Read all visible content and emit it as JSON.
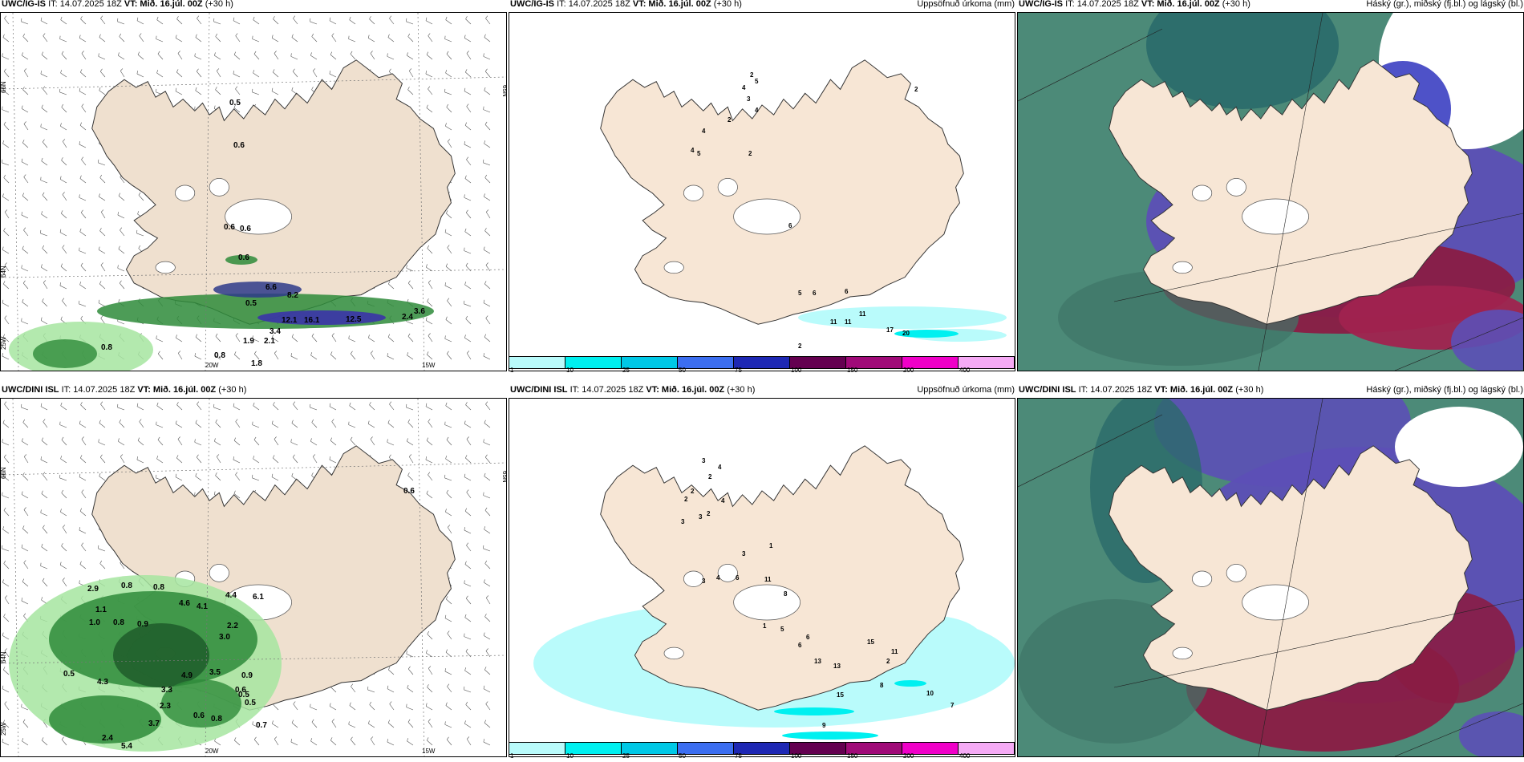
{
  "panels": [
    {
      "model": "UWC/IG-IS",
      "it_label": "IT: 14.07.2025 18Z",
      "vt_label": "VT: Mið. 16.júl. 00Z",
      "lead": "(+30 h)",
      "title_right": "",
      "values": [
        {
          "v": "0.5"
        },
        {
          "v": "0.6"
        },
        {
          "v": "0.6"
        },
        {
          "v": "0.6"
        },
        {
          "v": "0.6"
        },
        {
          "v": "6.6"
        },
        {
          "v": "8.2"
        },
        {
          "v": "0.5"
        },
        {
          "v": "12.1"
        },
        {
          "v": "16.1"
        },
        {
          "v": "12.5"
        },
        {
          "v": "2.4"
        },
        {
          "v": "3.4"
        },
        {
          "v": "1.9"
        },
        {
          "v": "2.1"
        },
        {
          "v": "0.8"
        },
        {
          "v": "0.8"
        },
        {
          "v": "1.8"
        },
        {
          "v": "3.6"
        }
      ],
      "axis": {
        "lat1": "66N",
        "lat2": "64N",
        "lat3": "65N",
        "lon1": "20W",
        "lon2": "15W",
        "lon3": "25W"
      }
    },
    {
      "model": "UWC/IG-IS",
      "it_label": "IT: 14.07.2025 18Z",
      "vt_label": "VT: Mið. 16.júl. 00Z",
      "lead": "(+30 h)",
      "title_right": "Uppsöfnuð úrkoma (mm)",
      "values": [
        {
          "v": "2"
        },
        {
          "v": "5"
        },
        {
          "v": "4"
        },
        {
          "v": "3"
        },
        {
          "v": "4"
        },
        {
          "v": "2"
        },
        {
          "v": "4"
        },
        {
          "v": "4"
        },
        {
          "v": "5"
        },
        {
          "v": "2"
        },
        {
          "v": "2"
        },
        {
          "v": "6"
        },
        {
          "v": "5"
        },
        {
          "v": "6"
        },
        {
          "v": "6"
        },
        {
          "v": "11"
        },
        {
          "v": "11"
        },
        {
          "v": "11"
        },
        {
          "v": "17"
        },
        {
          "v": "20"
        },
        {
          "v": "2"
        }
      ]
    },
    {
      "model": "UWC/IG-IS",
      "it_label": "IT: 14.07.2025 18Z",
      "vt_label": "VT: Mið. 16.júl. 00Z",
      "lead": "(+30 h)",
      "title_right": "Háský (gr.), miðský (fj.bl.) og lágský (bl.)"
    },
    {
      "model": "UWC/DINI ISL",
      "it_label": "IT: 14.07.2025 18Z",
      "vt_label": "VT: Mið. 16.júl. 00Z",
      "lead": "(+30 h)",
      "title_right": "",
      "values": [
        {
          "v": "0.6"
        },
        {
          "v": "2.9"
        },
        {
          "v": "0.8"
        },
        {
          "v": "0.8"
        },
        {
          "v": "1.1"
        },
        {
          "v": "1.0"
        },
        {
          "v": "0.8"
        },
        {
          "v": "0.9"
        },
        {
          "v": "4.6"
        },
        {
          "v": "4.1"
        },
        {
          "v": "4.4"
        },
        {
          "v": "6.1"
        },
        {
          "v": "2.2"
        },
        {
          "v": "3.0"
        },
        {
          "v": "0.5"
        },
        {
          "v": "4.3"
        },
        {
          "v": "4.9"
        },
        {
          "v": "3.5"
        },
        {
          "v": "3.3"
        },
        {
          "v": "2.3"
        },
        {
          "v": "0.6"
        },
        {
          "v": "0.5"
        },
        {
          "v": "3.7"
        },
        {
          "v": "0.5"
        },
        {
          "v": "0.7"
        },
        {
          "v": "2.4"
        },
        {
          "v": "5.4"
        },
        {
          "v": "0.9"
        },
        {
          "v": "0.6"
        },
        {
          "v": "0.8"
        }
      ],
      "axis": {
        "lat1": "66N",
        "lat2": "64N",
        "lat3": "65N",
        "lon1": "20W",
        "lon2": "15W",
        "lon3": "25W"
      }
    },
    {
      "model": "UWC/DINI ISL",
      "it_label": "IT: 14.07.2025 18Z",
      "vt_label": "VT: Mið. 16.júl. 00Z",
      "lead": "(+30 h)",
      "title_right": "Uppsöfnuð úrkoma (mm)",
      "values": [
        {
          "v": "3"
        },
        {
          "v": "4"
        },
        {
          "v": "2"
        },
        {
          "v": "2"
        },
        {
          "v": "2"
        },
        {
          "v": "4"
        },
        {
          "v": "3"
        },
        {
          "v": "3"
        },
        {
          "v": "2"
        },
        {
          "v": "1"
        },
        {
          "v": "3"
        },
        {
          "v": "3"
        },
        {
          "v": "4"
        },
        {
          "v": "6"
        },
        {
          "v": "11"
        },
        {
          "v": "8"
        },
        {
          "v": "1"
        },
        {
          "v": "5"
        },
        {
          "v": "6"
        },
        {
          "v": "13"
        },
        {
          "v": "13"
        },
        {
          "v": "15"
        },
        {
          "v": "11"
        },
        {
          "v": "8"
        },
        {
          "v": "15"
        },
        {
          "v": "10"
        },
        {
          "v": "7"
        },
        {
          "v": "9"
        },
        {
          "v": "2"
        },
        {
          "v": "6"
        }
      ]
    },
    {
      "model": "UWC/DINI ISL",
      "it_label": "IT: 14.07.2025 18Z",
      "vt_label": "VT: Mið. 16.júl. 00Z",
      "lead": "(+30 h)",
      "title_right": "Háský (gr.), miðský (fj.bl.) og lágský (bl.)"
    }
  ],
  "colorbar": {
    "colors": [
      "#b9fbfb",
      "#00f0f0",
      "#00c8e6",
      "#3c6ef0",
      "#1e28b4",
      "#640050",
      "#a00a78",
      "#f000c8",
      "#f5aaf5"
    ],
    "ticks": [
      "1",
      "10",
      "25",
      "50",
      "75",
      "100",
      "150",
      "200",
      "400"
    ]
  },
  "colors": {
    "land": "#f7e6d5",
    "land_wind": "#efe0cf",
    "cloud_high": "#5a9f8a",
    "cloud_mid": "#a81f50",
    "cloud_low": "#6b5cc4",
    "precip_green": "#2e8b3a"
  }
}
